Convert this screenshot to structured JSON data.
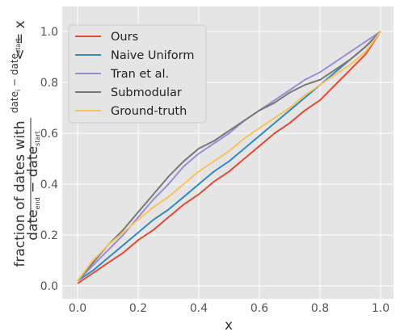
{
  "chart_data": {
    "type": "line",
    "title": "",
    "xlabel": "x",
    "ylabel_parts": {
      "prefix": "fraction of dates with",
      "num": "date",
      "num_sub": "i",
      "num_rest": " − date",
      "num_rest_sub": "start",
      "den": "date",
      "den_sub": "end",
      "den_rest": " − date",
      "den_rest_sub": "start",
      "suffix": " < = x"
    },
    "xlim": [
      0,
      1
    ],
    "ylim": [
      0,
      1
    ],
    "xticks": [
      "0.0",
      "0.2",
      "0.4",
      "0.6",
      "0.8",
      "1.0"
    ],
    "yticks": [
      "0.0",
      "0.2",
      "0.4",
      "0.6",
      "0.8",
      "1.0"
    ],
    "grid": true,
    "legend_position": "top-left",
    "series": [
      {
        "name": "Ours",
        "color": "#e24a33",
        "x": [
          0,
          0.05,
          0.1,
          0.15,
          0.2,
          0.25,
          0.3,
          0.35,
          0.4,
          0.45,
          0.5,
          0.55,
          0.6,
          0.65,
          0.7,
          0.75,
          0.8,
          0.85,
          0.9,
          0.95,
          1.0
        ],
        "y": [
          0.01,
          0.05,
          0.09,
          0.13,
          0.18,
          0.22,
          0.27,
          0.32,
          0.36,
          0.41,
          0.45,
          0.5,
          0.55,
          0.6,
          0.64,
          0.69,
          0.73,
          0.79,
          0.85,
          0.91,
          1.0
        ]
      },
      {
        "name": "Naive Uniform",
        "color": "#348abd",
        "x": [
          0,
          0.05,
          0.1,
          0.15,
          0.2,
          0.25,
          0.3,
          0.35,
          0.4,
          0.45,
          0.5,
          0.55,
          0.6,
          0.65,
          0.7,
          0.75,
          0.8,
          0.85,
          0.9,
          0.95,
          1.0
        ],
        "y": [
          0.02,
          0.06,
          0.11,
          0.16,
          0.21,
          0.26,
          0.3,
          0.35,
          0.4,
          0.45,
          0.49,
          0.54,
          0.59,
          0.64,
          0.69,
          0.74,
          0.79,
          0.84,
          0.89,
          0.94,
          1.0
        ]
      },
      {
        "name": "Tran et al.",
        "color": "#988ed5",
        "x": [
          0,
          0.05,
          0.1,
          0.15,
          0.2,
          0.25,
          0.3,
          0.35,
          0.4,
          0.45,
          0.5,
          0.55,
          0.6,
          0.65,
          0.7,
          0.75,
          0.8,
          0.85,
          0.9,
          0.95,
          1.0
        ],
        "y": [
          0.02,
          0.08,
          0.14,
          0.2,
          0.27,
          0.34,
          0.4,
          0.47,
          0.52,
          0.56,
          0.6,
          0.65,
          0.69,
          0.73,
          0.77,
          0.81,
          0.84,
          0.88,
          0.92,
          0.96,
          1.0
        ]
      },
      {
        "name": "Submodular",
        "color": "#777777",
        "x": [
          0,
          0.05,
          0.1,
          0.15,
          0.2,
          0.25,
          0.3,
          0.35,
          0.4,
          0.45,
          0.5,
          0.55,
          0.6,
          0.65,
          0.7,
          0.75,
          0.8,
          0.85,
          0.9,
          0.95,
          1.0
        ],
        "y": [
          0.02,
          0.09,
          0.16,
          0.22,
          0.29,
          0.36,
          0.43,
          0.49,
          0.54,
          0.57,
          0.61,
          0.65,
          0.69,
          0.72,
          0.76,
          0.79,
          0.81,
          0.85,
          0.89,
          0.94,
          1.0
        ]
      },
      {
        "name": "Ground-truth",
        "color": "#fbc15e",
        "x": [
          0,
          0.05,
          0.1,
          0.15,
          0.2,
          0.25,
          0.3,
          0.35,
          0.4,
          0.45,
          0.5,
          0.55,
          0.6,
          0.65,
          0.7,
          0.75,
          0.8,
          0.85,
          0.9,
          0.95,
          1.0
        ],
        "y": [
          0.02,
          0.1,
          0.16,
          0.21,
          0.26,
          0.31,
          0.35,
          0.4,
          0.45,
          0.49,
          0.53,
          0.58,
          0.62,
          0.66,
          0.7,
          0.75,
          0.79,
          0.83,
          0.87,
          0.92,
          1.0
        ]
      }
    ]
  }
}
